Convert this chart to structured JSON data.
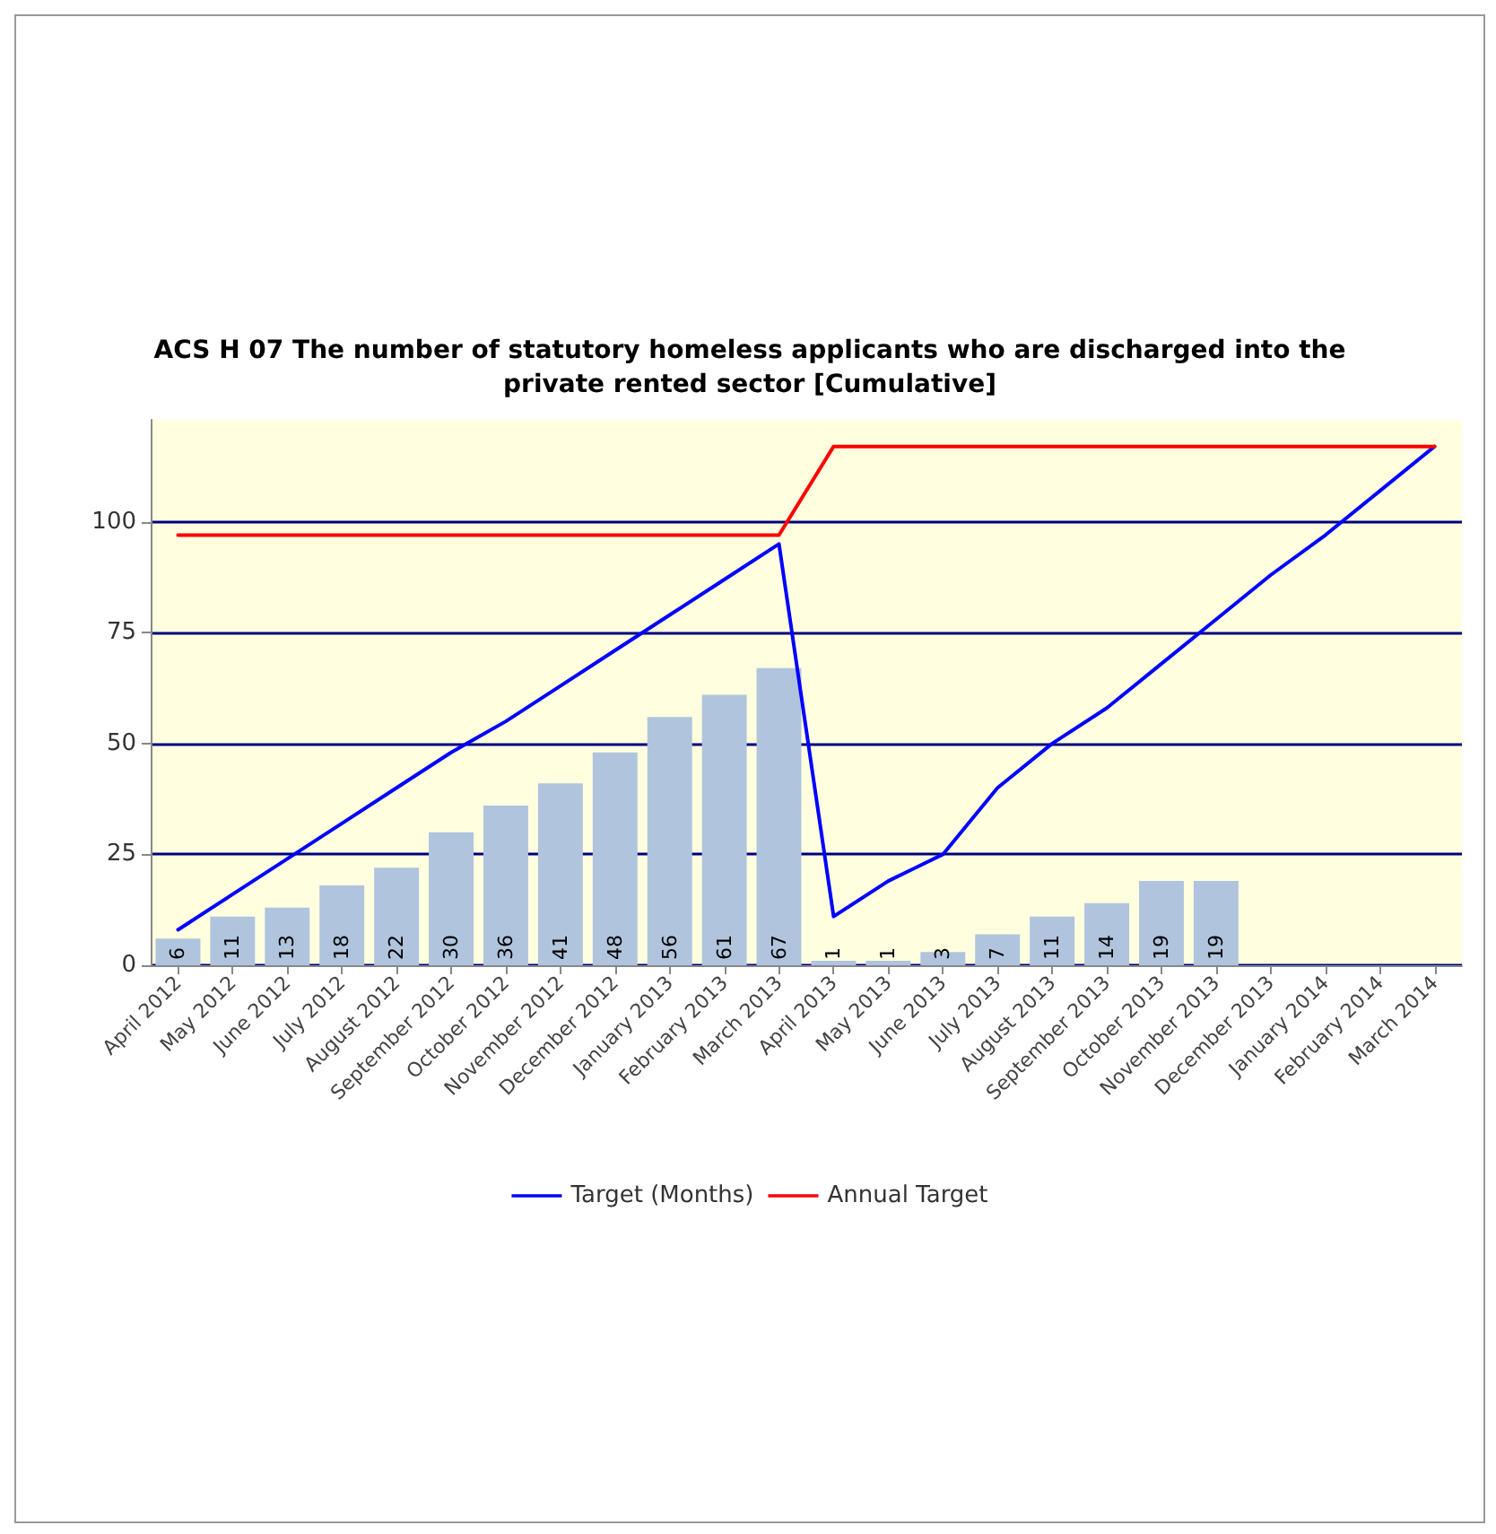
{
  "chart_data": {
    "type": "bar",
    "title": "ACS H 07 The number of statutory homeless applicants who are discharged into the\nprivate rented sector [Cumulative]",
    "categories": [
      "April 2012",
      "May 2012",
      "June 2012",
      "July 2012",
      "August 2012",
      "September 2012",
      "October 2012",
      "November 2012",
      "December 2012",
      "January 2013",
      "February 2013",
      "March 2013",
      "April 2013",
      "May 2013",
      "June 2013",
      "July 2013",
      "August 2013",
      "September 2013",
      "October 2013",
      "November 2013",
      "December 2013",
      "January 2014",
      "February 2014",
      "March 2014"
    ],
    "series": [
      {
        "color": "#b0c4de",
        "values": [
          6,
          11,
          13,
          18,
          22,
          30,
          36,
          41,
          48,
          56,
          61,
          67,
          1,
          1,
          3,
          7,
          11,
          14,
          19,
          19,
          null,
          null,
          null,
          null
        ],
        "value_labels": [
          "6",
          "11",
          "13",
          "18",
          "22",
          "30",
          "36",
          "41",
          "48",
          "56",
          "61",
          "67",
          "1",
          "1",
          "3",
          "7",
          "11",
          "14",
          "19",
          "19",
          null,
          null,
          null,
          null
        ]
      },
      {
        "type": "line",
        "name": "Target (Months)",
        "color": "#0000ff",
        "values": [
          8,
          16,
          24,
          32,
          40,
          48,
          55,
          63,
          71,
          79,
          87,
          95,
          11,
          19,
          25,
          40,
          50,
          58,
          68,
          78,
          88,
          97,
          107,
          117
        ]
      },
      {
        "type": "line",
        "name": "Annual Target",
        "color": "#ff0000",
        "values": [
          97,
          97,
          97,
          97,
          97,
          97,
          97,
          97,
          97,
          97,
          97,
          97,
          117,
          117,
          117,
          117,
          117,
          117,
          117,
          117,
          117,
          117,
          117,
          117
        ]
      }
    ],
    "ylim": [
      0,
      123
    ],
    "yticks": [
      0,
      25,
      50,
      75,
      100
    ],
    "grid": "y",
    "legend": "bottom",
    "marker": "none",
    "line_style": "solid"
  }
}
